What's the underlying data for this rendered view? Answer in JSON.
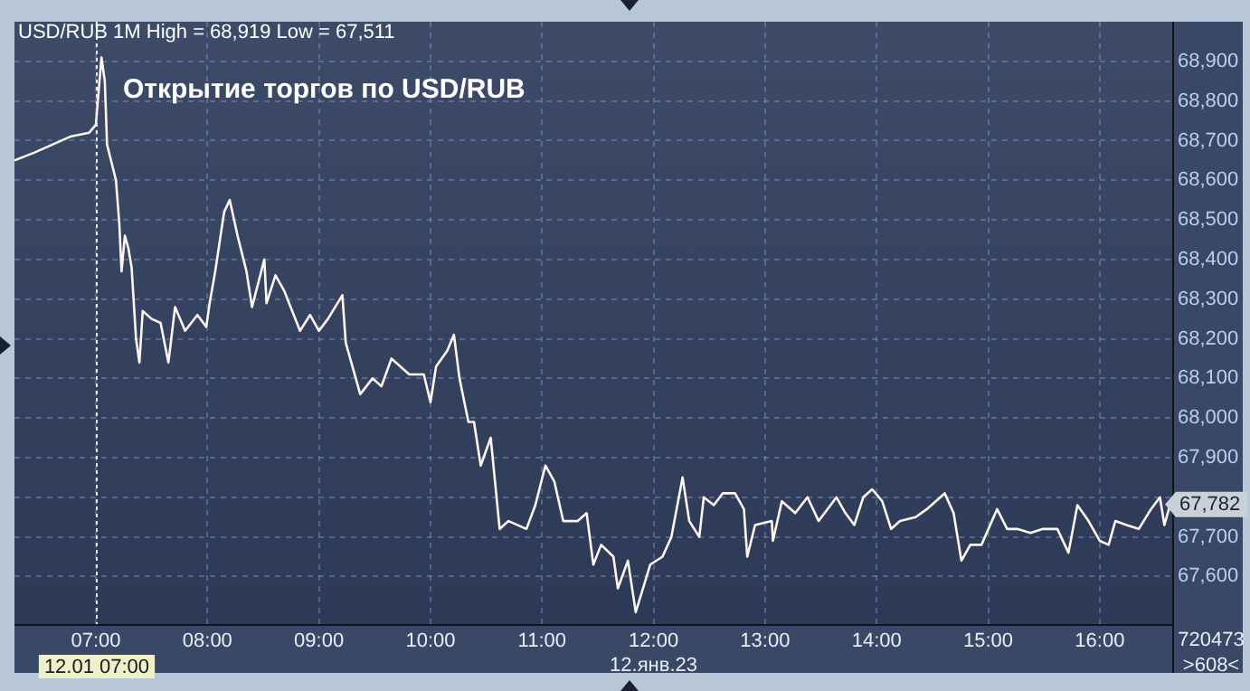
{
  "chart_data": {
    "type": "line",
    "title": "USD/RUB 1M High = 68,919 Low = 67,511",
    "annotations": [
      "Открытие торгов по USD/RUB",
      "12.янв.23",
      "720473",
      ">608<",
      {
        "text": "67,782",
        "x": 16.65,
        "y": 67782
      }
    ],
    "xlim": [
      6.27,
      16.65
    ],
    "ylim": [
      67480,
      69000
    ],
    "xticks": [
      {
        "value": 7,
        "label": "07:00"
      },
      {
        "value": 8,
        "label": "08:00"
      },
      {
        "value": 9,
        "label": "09:00"
      },
      {
        "value": 10,
        "label": "10:00"
      },
      {
        "value": 11,
        "label": "11:00"
      },
      {
        "value": 12,
        "label": "12:00"
      },
      {
        "value": 13,
        "label": "13:00"
      },
      {
        "value": 14,
        "label": "14:00"
      },
      {
        "value": 15,
        "label": "15:00"
      },
      {
        "value": 16,
        "label": "16:00"
      }
    ],
    "yticks": [
      {
        "value": 67600,
        "label": "67,600"
      },
      {
        "value": 67700,
        "label": "67,700"
      },
      {
        "value": 67800,
        "label": null
      },
      {
        "value": 67900,
        "label": "67,900"
      },
      {
        "value": 68000,
        "label": "68,000"
      },
      {
        "value": 68100,
        "label": "68,100"
      },
      {
        "value": 68200,
        "label": "68,200"
      },
      {
        "value": 68300,
        "label": "68,300"
      },
      {
        "value": 68400,
        "label": "68,400"
      },
      {
        "value": 68500,
        "label": "68,500"
      },
      {
        "value": 68600,
        "label": "68,600"
      },
      {
        "value": 68700,
        "label": "68,700"
      },
      {
        "value": 68800,
        "label": "68,800"
      },
      {
        "value": 68900,
        "label": "68,900"
      }
    ],
    "grid": true,
    "legend": false,
    "marker": "none",
    "line_style": "solid",
    "ref_lines": [
      {
        "axis": "x",
        "value": 7,
        "label": "12.01 07:00",
        "color": "#e8e8e8",
        "line_style": "dotted"
      }
    ],
    "series": [
      {
        "color": "#fff5f0",
        "x": [
          6.27,
          6.45,
          6.61,
          6.77,
          6.94,
          7.0,
          7.05,
          7.08,
          7.1,
          7.18,
          7.21,
          7.23,
          7.26,
          7.29,
          7.32,
          7.36,
          7.39,
          7.42,
          7.5,
          7.58,
          7.65,
          7.71,
          7.8,
          7.91,
          7.99,
          8.02,
          8.07,
          8.15,
          8.2,
          8.27,
          8.35,
          8.4,
          8.51,
          8.53,
          8.61,
          8.69,
          8.83,
          8.92,
          9.0,
          9.08,
          9.21,
          9.24,
          9.32,
          9.37,
          9.48,
          9.56,
          9.65,
          9.81,
          9.94,
          10.0,
          10.05,
          10.15,
          10.21,
          10.26,
          10.34,
          10.39,
          10.45,
          10.54,
          10.62,
          10.7,
          10.86,
          10.94,
          11.03,
          11.11,
          11.19,
          11.32,
          11.4,
          11.46,
          11.53,
          11.64,
          11.68,
          11.77,
          11.84,
          11.97,
          12.08,
          12.16,
          12.26,
          12.32,
          12.41,
          12.45,
          12.54,
          12.62,
          12.73,
          12.81,
          12.84,
          12.91,
          13.06,
          13.07,
          13.15,
          13.27,
          13.38,
          13.48,
          13.64,
          13.72,
          13.8,
          13.88,
          13.96,
          14.05,
          14.13,
          14.21,
          14.35,
          14.45,
          14.61,
          14.69,
          14.76,
          14.84,
          14.94,
          15.08,
          15.17,
          15.26,
          15.38,
          15.49,
          15.62,
          15.72,
          15.8,
          15.9,
          16.0,
          16.08,
          16.14,
          16.24,
          16.35,
          16.46,
          16.54,
          16.58,
          16.63
        ],
        "values": [
          68650,
          68670,
          68690,
          68710,
          68720,
          68740,
          68910,
          68850,
          68690,
          68600,
          68490,
          68370,
          68460,
          68430,
          68380,
          68200,
          68140,
          68270,
          68250,
          68240,
          68140,
          68280,
          68220,
          68260,
          68230,
          68290,
          68370,
          68520,
          68550,
          68460,
          68370,
          68280,
          68400,
          68290,
          68360,
          68320,
          68220,
          68260,
          68220,
          68250,
          68310,
          68190,
          68110,
          68060,
          68100,
          68080,
          68150,
          68110,
          68110,
          68040,
          68130,
          68170,
          68210,
          68100,
          67990,
          67990,
          67880,
          67950,
          67720,
          67740,
          67720,
          67780,
          67880,
          67840,
          67740,
          67740,
          67760,
          67630,
          67680,
          67650,
          67570,
          67640,
          67510,
          67630,
          67650,
          67700,
          67850,
          67740,
          67700,
          67800,
          67780,
          67810,
          67810,
          67770,
          67650,
          67730,
          67740,
          67690,
          67790,
          67760,
          67800,
          67740,
          67800,
          67760,
          67730,
          67800,
          67820,
          67790,
          67720,
          67740,
          67750,
          67770,
          67810,
          67760,
          67640,
          67680,
          67680,
          67770,
          67720,
          67720,
          67710,
          67720,
          67720,
          67660,
          67780,
          67740,
          67690,
          67680,
          67740,
          67730,
          67720,
          67770,
          67800,
          67730,
          67780
        ]
      }
    ]
  }
}
